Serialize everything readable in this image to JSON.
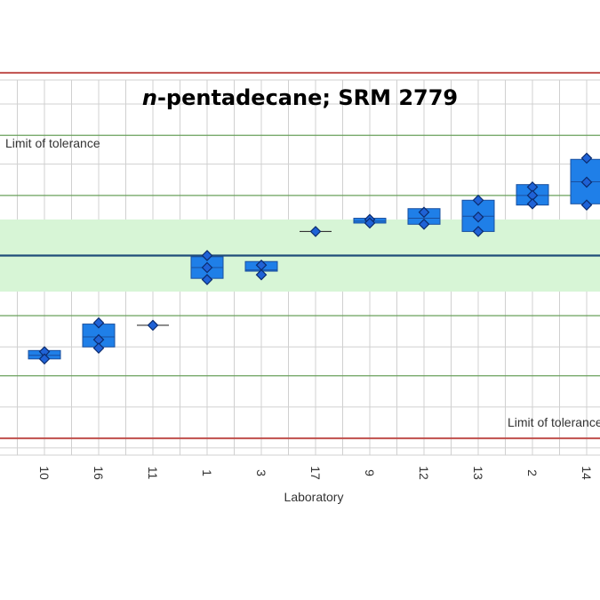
{
  "chart_data": {
    "type": "box",
    "title_italic": "n",
    "title_rest": "-pentadecane; SRM 2779",
    "xlabel": "Laboratory",
    "ylabel": "",
    "ylim": [
      -8.3,
      7.3
    ],
    "grid": true,
    "categories": [
      "10",
      "16",
      "11",
      "1",
      "3",
      "17",
      "9",
      "12",
      "13",
      "2",
      "14"
    ],
    "assigned_value": 0,
    "band": [
      -1.5,
      1.5
    ],
    "reference_lines": [
      -5,
      -2.5,
      2.5,
      5
    ],
    "gridlines": [
      -8,
      -6.3,
      -3.8,
      0,
      3.8,
      6.3
    ],
    "tolerance_limits": [
      -7.6,
      7.6
    ],
    "tolerance_label_upper": "Limit of tolerance",
    "tolerance_label_lower": "Limit of tolerance",
    "series": [
      {
        "lab": "10",
        "points": [
          -4.0,
          -4.3
        ],
        "box": [
          -4.3,
          -3.95
        ]
      },
      {
        "lab": "16",
        "points": [
          -2.8,
          -3.5,
          -3.85
        ],
        "box": [
          -3.8,
          -2.85
        ]
      },
      {
        "lab": "11",
        "points": [
          -2.9
        ],
        "box": [
          -2.9,
          -2.9
        ]
      },
      {
        "lab": "1",
        "points": [
          0,
          -0.5,
          -1.0
        ],
        "box": [
          -0.95,
          -0.05
        ]
      },
      {
        "lab": "3",
        "points": [
          -0.4,
          -0.8
        ],
        "box": [
          -0.65,
          -0.25
        ]
      },
      {
        "lab": "17",
        "points": [
          1.0
        ],
        "box": [
          1.0,
          1.0
        ]
      },
      {
        "lab": "9",
        "points": [
          1.5,
          1.35
        ],
        "box": [
          1.35,
          1.55
        ]
      },
      {
        "lab": "12",
        "points": [
          1.8,
          1.3
        ],
        "box": [
          1.3,
          1.95
        ]
      },
      {
        "lab": "13",
        "points": [
          2.3,
          1.6,
          1.0
        ],
        "box": [
          1.0,
          2.3
        ]
      },
      {
        "lab": "2",
        "points": [
          2.85,
          2.5,
          2.15
        ],
        "box": [
          2.1,
          2.95
        ]
      },
      {
        "lab": "14",
        "points": [
          4.05,
          3.05,
          2.1
        ],
        "box": [
          2.15,
          4.0
        ]
      }
    ],
    "colors": {
      "box": "#1f7fe8",
      "box_stroke": "#1a4f9e",
      "marker": "#1f62d6",
      "marker_stroke": "#0c2c6e",
      "band": "#d7f5d6",
      "center_line": "#1f4d7a",
      "reference_line": "#6aa05b",
      "tolerance_line": "#c0504d",
      "grid": "#d0d0d0"
    }
  }
}
